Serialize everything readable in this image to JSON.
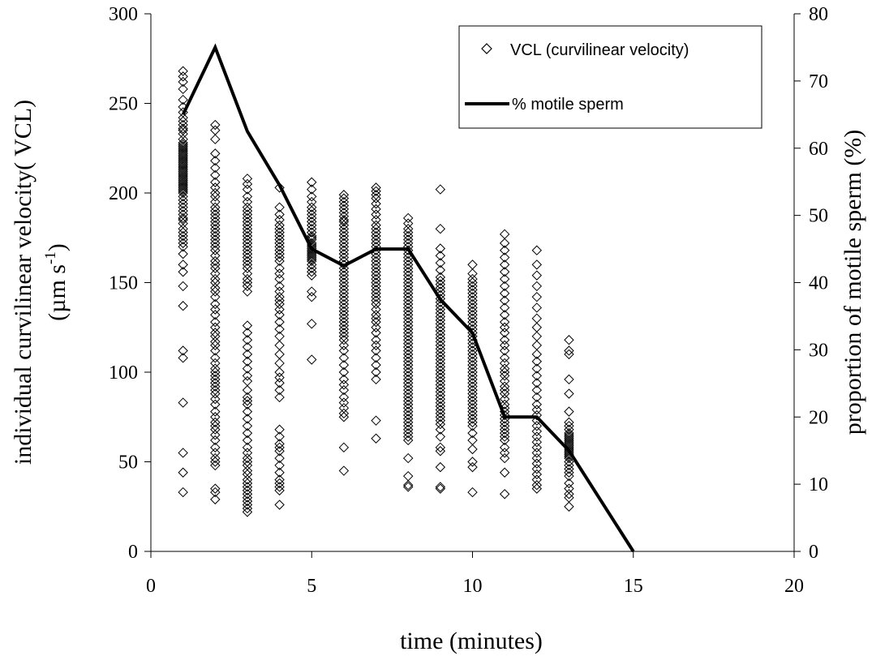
{
  "chart_data": {
    "type": "scatter",
    "xlabel": "time (minutes)",
    "ylabel_line1": "individual curvilinear velocity( VCL)",
    "ylabel_line2_prefix": "(µm s",
    "ylabel_line2_sup": "-1",
    "ylabel_line2_suffix": ")",
    "y2label": "proportion of motile sperm (%)",
    "xlim": [
      0,
      20
    ],
    "ylim": [
      0,
      300
    ],
    "y2lim": [
      0,
      80
    ],
    "xticks": [
      "0",
      "5",
      "10",
      "15",
      "20"
    ],
    "yticks": [
      "0",
      "50",
      "100",
      "150",
      "200",
      "250",
      "300"
    ],
    "y2ticks": [
      "0",
      "10",
      "20",
      "30",
      "40",
      "50",
      "60",
      "70",
      "80"
    ],
    "legend_position": "top-right",
    "grid": false,
    "series": [
      {
        "name": "VCL (curvilinear velocity)",
        "kind": "scatter",
        "marker": "diamond-open",
        "color": "#000000",
        "points": [
          {
            "x": 1,
            "y": [
              268,
              265,
              262,
              258,
              252,
              248,
              245,
              242,
              240,
              238,
              236,
              235,
              233,
              230,
              228,
              227,
              226,
              225,
              224,
              223,
              222,
              221,
              220,
              219,
              218,
              217,
              216,
              215,
              214,
              213,
              212,
              211,
              210,
              209,
              208,
              207,
              206,
              205,
              204,
              203,
              202,
              201,
              200,
              198,
              196,
              194,
              192,
              190,
              188,
              186,
              185,
              183,
              180,
              178,
              176,
              174,
              172,
              170,
              166,
              160,
              156,
              148,
              137,
              112,
              108,
              83,
              55,
              44,
              33
            ]
          },
          {
            "x": 2,
            "y": [
              238,
              235,
              230,
              222,
              218,
              214,
              210,
              206,
              203,
              200,
              198,
              195,
              192,
              190,
              188,
              186,
              184,
              182,
              180,
              178,
              176,
              174,
              172,
              170,
              168,
              165,
              162,
              160,
              158,
              155,
              152,
              150,
              147,
              145,
              142,
              138,
              135,
              132,
              128,
              125,
              122,
              120,
              117,
              115,
              112,
              108,
              105,
              102,
              100,
              98,
              96,
              94,
              92,
              90,
              88,
              85,
              82,
              78,
              75,
              72,
              70,
              68,
              65,
              62,
              58,
              55,
              52,
              50,
              48,
              35,
              33,
              29
            ]
          },
          {
            "x": 3,
            "y": [
              208,
              205,
              202,
              198,
              195,
              192,
              190,
              188,
              186,
              184,
              182,
              180,
              178,
              176,
              174,
              172,
              170,
              168,
              166,
              164,
              162,
              160,
              158,
              155,
              152,
              150,
              148,
              145,
              126,
              122,
              118,
              114,
              110,
              106,
              102,
              98,
              95,
              90,
              86,
              84,
              82,
              78,
              74,
              70,
              66,
              62,
              58,
              55,
              52,
              50,
              48,
              45,
              43,
              40,
              38,
              36,
              34,
              32,
              30,
              28,
              26,
              24,
              22
            ]
          },
          {
            "x": 4,
            "y": [
              203,
              192,
              188,
              185,
              182,
              180,
              178,
              176,
              174,
              172,
              170,
              168,
              166,
              164,
              162,
              158,
              155,
              152,
              148,
              145,
              142,
              140,
              138,
              135,
              132,
              128,
              124,
              120,
              115,
              110,
              105,
              100,
              97,
              94,
              90,
              86,
              68,
              64,
              60,
              58,
              56,
              52,
              48,
              44,
              40,
              38,
              36,
              34,
              26
            ]
          },
          {
            "x": 5,
            "y": [
              206,
              202,
              198,
              195,
              192,
              190,
              188,
              186,
              184,
              182,
              180,
              178,
              176,
              175,
              174,
              172,
              171,
              170,
              169,
              168,
              167,
              166,
              165,
              164,
              163,
              162,
              160,
              158,
              156,
              154,
              145,
              142,
              127,
              107
            ]
          },
          {
            "x": 6,
            "y": [
              199,
              197,
              195,
              193,
              191,
              189,
              187,
              185,
              184,
              182,
              180,
              178,
              176,
              174,
              172,
              170,
              168,
              166,
              164,
              162,
              160,
              158,
              156,
              154,
              152,
              150,
              148,
              146,
              144,
              142,
              140,
              138,
              136,
              134,
              132,
              130,
              128,
              126,
              124,
              122,
              120,
              118,
              115,
              112,
              108,
              104,
              100,
              96,
              93,
              90,
              86,
              83,
              80,
              77,
              75,
              58,
              45
            ]
          },
          {
            "x": 7,
            "y": [
              203,
              201,
              199,
              197,
              194,
              191,
              188,
              185,
              182,
              180,
              178,
              176,
              174,
              172,
              170,
              168,
              166,
              164,
              162,
              160,
              158,
              156,
              154,
              152,
              150,
              148,
              146,
              144,
              142,
              140,
              138,
              135,
              132,
              130,
              128,
              125,
              122,
              118,
              115,
              112,
              108,
              104,
              100,
              96,
              73,
              63
            ]
          },
          {
            "x": 8,
            "y": [
              186,
              183,
              180,
              178,
              176,
              174,
              172,
              170,
              168,
              166,
              164,
              162,
              160,
              158,
              156,
              154,
              152,
              150,
              148,
              146,
              144,
              142,
              140,
              138,
              136,
              134,
              132,
              130,
              128,
              126,
              124,
              122,
              120,
              118,
              116,
              114,
              112,
              110,
              108,
              106,
              104,
              102,
              100,
              98,
              96,
              94,
              92,
              90,
              88,
              86,
              84,
              82,
              80,
              78,
              76,
              74,
              72,
              70,
              68,
              66,
              64,
              62,
              52,
              42,
              37,
              36
            ]
          },
          {
            "x": 9,
            "y": [
              202,
              180,
              169,
              165,
              161,
              157,
              153,
              151,
              149,
              147,
              145,
              143,
              141,
              139,
              137,
              135,
              133,
              131,
              129,
              127,
              125,
              123,
              121,
              119,
              117,
              115,
              113,
              111,
              109,
              107,
              105,
              103,
              101,
              99,
              97,
              95,
              93,
              91,
              89,
              87,
              85,
              83,
              81,
              79,
              77,
              75,
              73,
              71,
              68,
              64,
              58,
              56,
              47,
              36,
              35
            ]
          },
          {
            "x": 10,
            "y": [
              160,
              155,
              152,
              150,
              148,
              146,
              144,
              142,
              140,
              138,
              136,
              134,
              132,
              130,
              128,
              126,
              124,
              122,
              120,
              118,
              116,
              114,
              112,
              110,
              108,
              106,
              104,
              102,
              100,
              98,
              96,
              94,
              92,
              90,
              88,
              86,
              84,
              82,
              80,
              78,
              76,
              74,
              72,
              70,
              66,
              62,
              57,
              50,
              47,
              33
            ]
          },
          {
            "x": 11,
            "y": [
              177,
              172,
              168,
              164,
              160,
              156,
              152,
              148,
              144,
              140,
              136,
              132,
              128,
              125,
              122,
              118,
              115,
              112,
              108,
              105,
              102,
              100,
              98,
              95,
              92,
              90,
              88,
              85,
              82,
              80,
              78,
              76,
              74,
              72,
              70,
              68,
              66,
              64,
              62,
              58,
              55,
              52,
              44,
              32
            ]
          },
          {
            "x": 12,
            "y": [
              168,
              160,
              154,
              148,
              142,
              136,
              130,
              125,
              120,
              115,
              110,
              106,
              102,
              98,
              94,
              90,
              86,
              82,
              79,
              76,
              73,
              70,
              67,
              64,
              61,
              58,
              55,
              52,
              49,
              46,
              43,
              40,
              37,
              35
            ]
          },
          {
            "x": 13,
            "y": [
              118,
              112,
              110,
              96,
              88,
              78,
              72,
              70,
              68,
              66,
              65,
              64,
              63,
              62,
              61,
              60,
              59,
              58,
              57,
              56,
              55,
              54,
              53,
              52,
              50,
              48,
              46,
              44,
              42,
              38,
              35,
              32,
              30,
              25
            ]
          }
        ]
      },
      {
        "name": "% motile sperm",
        "kind": "line",
        "axis": "right",
        "color": "#000000",
        "x": [
          1,
          2,
          3,
          4,
          5,
          6,
          7,
          8,
          9,
          10,
          11,
          12,
          13,
          15
        ],
        "y": [
          65,
          75,
          62.5,
          54.5,
          45,
          42.5,
          45,
          45,
          37.5,
          32.5,
          20,
          20,
          15,
          0
        ]
      }
    ]
  }
}
